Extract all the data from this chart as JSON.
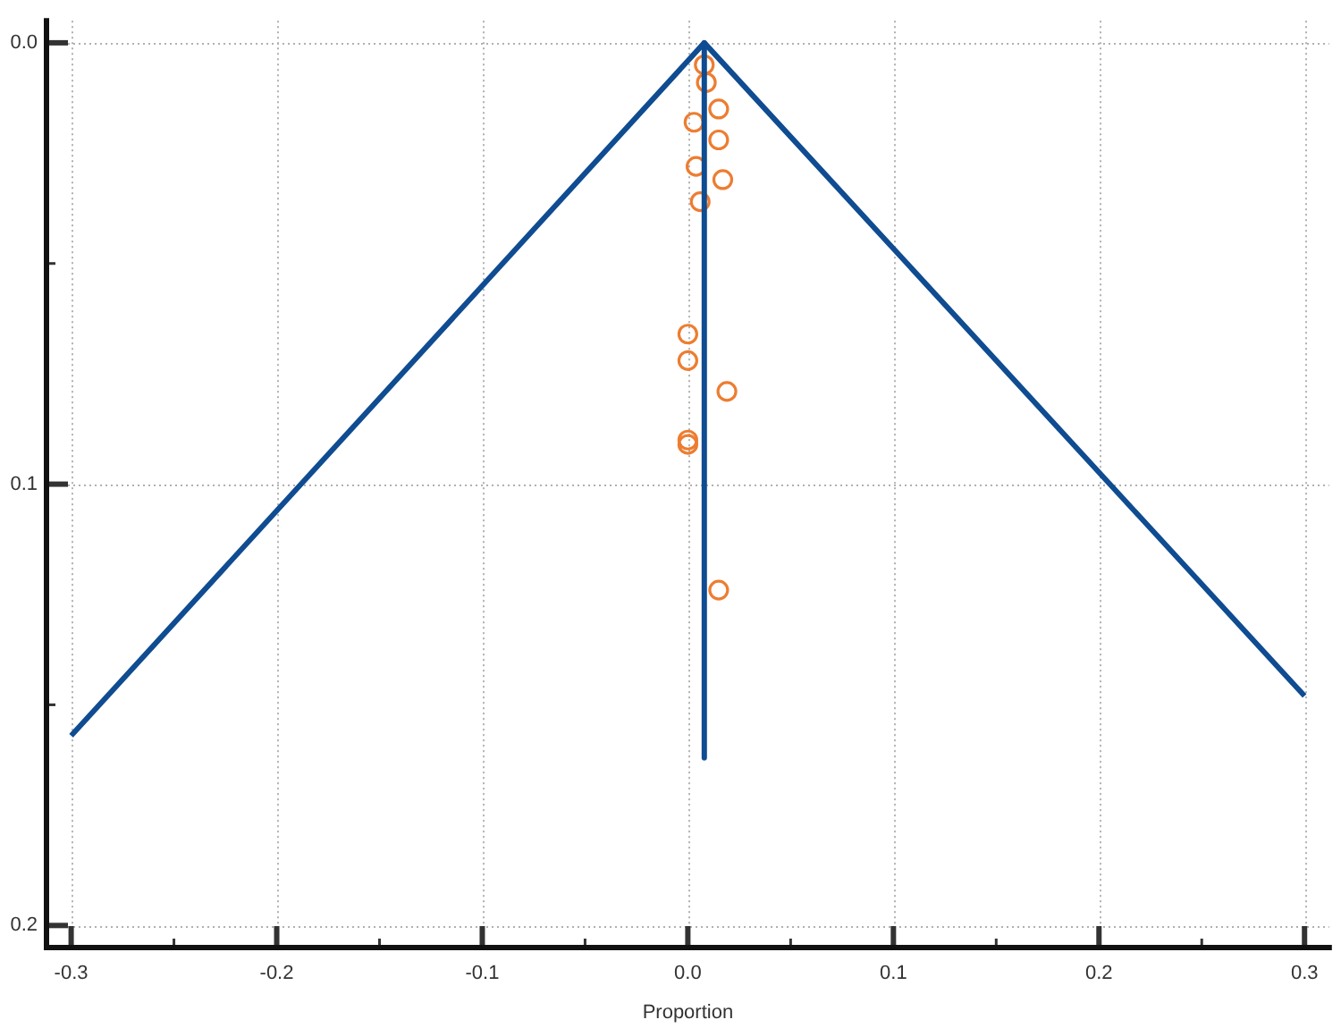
{
  "chart_data": {
    "type": "scatter",
    "xlabel": "Proportion",
    "xlim": [
      -0.312,
      0.312
    ],
    "ylim": [
      0.205,
      -0.005
    ],
    "xticks": [
      -0.3,
      {
        "value": -0.25,
        "label": null
      },
      -0.2,
      {
        "value": -0.15,
        "label": null
      },
      -0.1,
      {
        "value": -0.05,
        "label": null
      },
      {
        "value": 0,
        "label": "0.0"
      },
      {
        "value": 0.05,
        "label": null
      },
      0.1,
      {
        "value": 0.15,
        "label": null
      },
      0.2,
      {
        "value": 0.25,
        "label": null
      },
      0.3
    ],
    "yticks": [
      {
        "value": 0,
        "label": "0.0"
      },
      {
        "value": 0.05,
        "label": null
      },
      0.1,
      {
        "value": 0.15,
        "label": null
      },
      0.2
    ],
    "grid": true,
    "legend": false,
    "series": [
      {
        "type": "line",
        "color": "#0f4c91",
        "marker": "none",
        "line_style": "solid",
        "x": [
          -0.3,
          0.008,
          0.3
        ],
        "values": [
          0.157,
          0,
          0.148
        ]
      },
      {
        "type": "line",
        "color": "#0f4c91",
        "marker": "none",
        "line_style": "solid",
        "x": [
          0.008,
          0.008
        ],
        "values": [
          0,
          0.162
        ]
      },
      {
        "color": "#ed7d31",
        "marker": "circle",
        "x": [
          0.008,
          0.009,
          0.015,
          0.003,
          0.015,
          0.004,
          0.017,
          0.006,
          0.0,
          0.0,
          0.019,
          0.0,
          0.0,
          0.015
        ],
        "values": [
          0.005,
          0.009,
          0.015,
          0.018,
          0.022,
          0.028,
          0.031,
          0.036,
          0.066,
          0.072,
          0.079,
          0.09,
          0.091,
          0.124
        ]
      }
    ]
  }
}
